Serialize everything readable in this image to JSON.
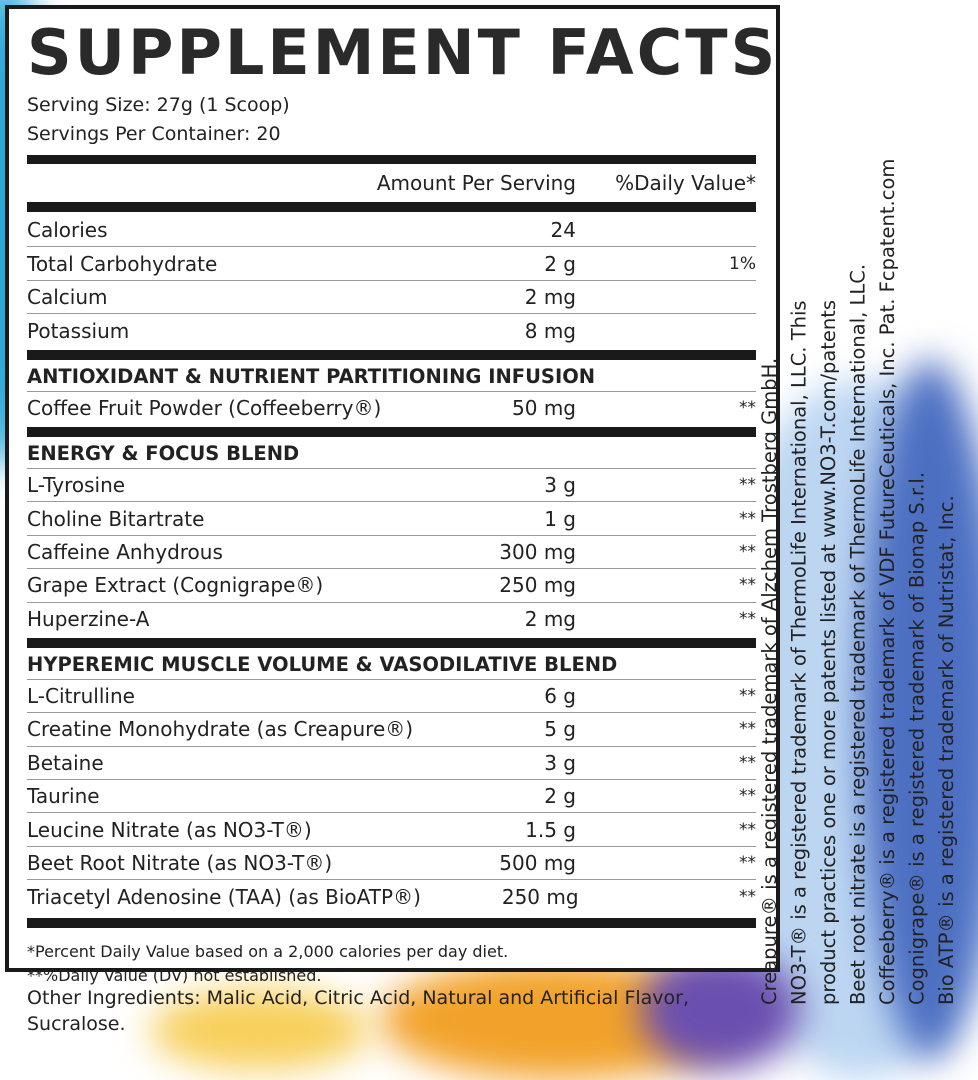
{
  "title": "SUPPLEMENT FACTS",
  "serving_size": "Serving Size: 27g (1 Scoop)",
  "servings_per_container": "Servings Per Container: 20",
  "header": {
    "amount": "Amount Per Serving",
    "dv": "%Daily Value*"
  },
  "rows": [
    {
      "name": "Calories",
      "amount": "24"
    },
    {
      "name": "Total Carbohydrate",
      "amount": "2 g",
      "dv": "1%"
    },
    {
      "name": "Calcium",
      "amount": "2 mg"
    },
    {
      "name": "Potassium",
      "amount": "8 mg"
    }
  ],
  "sections": [
    {
      "title": "ANTIOXIDANT & NUTRIENT PARTITIONING INFUSION",
      "rows": [
        {
          "name": "Coffee Fruit Powder (Coffeeberry®)",
          "amount": "50 mg",
          "dv": "**"
        }
      ]
    },
    {
      "title": "ENERGY & FOCUS BLEND",
      "rows": [
        {
          "name": "L-Tyrosine",
          "amount": "3 g",
          "dv": "**"
        },
        {
          "name": "Choline Bitartrate",
          "amount": "1 g",
          "dv": "**"
        },
        {
          "name": "Caffeine Anhydrous",
          "amount": "300 mg",
          "dv": "**"
        },
        {
          "name": "Grape Extract (Cognigrape®)",
          "amount": "250 mg",
          "dv": "**"
        },
        {
          "name": "Huperzine-A",
          "amount": "2 mg",
          "dv": "**"
        }
      ]
    },
    {
      "title": "HYPEREMIC MUSCLE VOLUME & VASODILATIVE BLEND",
      "rows": [
        {
          "name": "L-Citrulline",
          "amount": "6 g",
          "dv": "**"
        },
        {
          "name": "Creatine Monohydrate (as Creapure®)",
          "amount": "5 g",
          "dv": "**"
        },
        {
          "name": "Betaine",
          "amount": "3 g",
          "dv": "**"
        },
        {
          "name": "Taurine",
          "amount": "2 g",
          "dv": "**"
        },
        {
          "name": "Leucine Nitrate (as NO3-T®)",
          "amount": "1.5 g",
          "dv": "**"
        },
        {
          "name": "Beet Root Nitrate (as NO3-T®)",
          "amount": "500 mg",
          "dv": "**"
        },
        {
          "name": "Triacetyl Adenosine (TAA) (as BioATP®)",
          "amount": "250 mg",
          "dv": "**"
        }
      ]
    }
  ],
  "footnotes": [
    "*Percent Daily Value based on a 2,000 calories per day diet.",
    "**%Daily Value (DV) not established."
  ],
  "other_ingredients": "Other Ingredients: Malic Acid, Citric Acid, Natural and Artificial Flavor, Sucralose.",
  "trademarks": [
    "Creapure® is a registered trademark of Alzchem Trostberg GmbH.",
    "NO3-T® is a registered trademark of ThermoLife International, LLC. This",
    "product practices one or more patents listed at www.NO3-T.com/patents",
    "Beet root nitrate is a registered trademark of ThermoLife International, LLC.",
    "Coffeeberry® is a registered trademark of VDF FutureCeuticals, Inc. Pat. Fcpatent.com",
    "Cognigrape® is a registered trademark of Bionap S.r.l.",
    "Bio ATP® is a registered trademark of Nutristat, Inc."
  ]
}
